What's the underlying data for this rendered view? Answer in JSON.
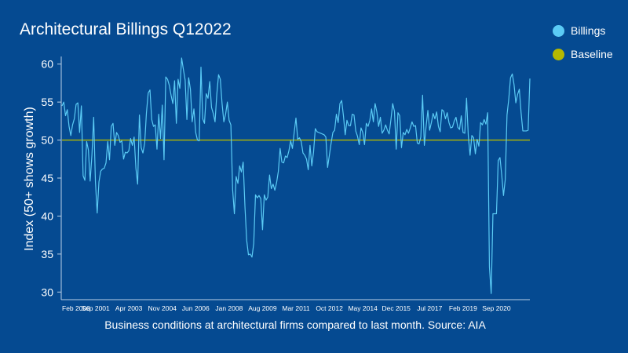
{
  "chart_data": {
    "type": "line",
    "title": "Architectural Billings Q12022",
    "ylabel": "Index (50+ shows growth)",
    "caption": "Business conditions at architectural firms compared to last month. Source: AIA",
    "ylim": [
      29,
      61
    ],
    "yticks": [
      30,
      35,
      40,
      45,
      50,
      55,
      60
    ],
    "xlim": [
      0,
      266
    ],
    "xticks": [
      {
        "i": 0,
        "label": "Feb 2000"
      },
      {
        "i": 19,
        "label": "Sep 2001"
      },
      {
        "i": 38,
        "label": "Apr 2003"
      },
      {
        "i": 57,
        "label": "Nov 2004"
      },
      {
        "i": 76,
        "label": "Jun 2006"
      },
      {
        "i": 95,
        "label": "Jan 2008"
      },
      {
        "i": 114,
        "label": "Aug 2009"
      },
      {
        "i": 133,
        "label": "Mar 2011"
      },
      {
        "i": 152,
        "label": "Oct 2012"
      },
      {
        "i": 171,
        "label": "May 2014"
      },
      {
        "i": 190,
        "label": "Dec 2015"
      },
      {
        "i": 209,
        "label": "Jul 2017"
      },
      {
        "i": 228,
        "label": "Feb 2019"
      },
      {
        "i": 247,
        "label": "Sep 2020"
      }
    ],
    "grid": false,
    "legend_position": "top-right",
    "series": [
      {
        "name": "Billings",
        "color": "#5bcbf5",
        "values": [
          54.5,
          55.0,
          53.2,
          54.0,
          51.8,
          50.6,
          52.0,
          52.8,
          54.7,
          54.9,
          51.0,
          54.5,
          45.3,
          44.7,
          49.8,
          48.7,
          44.6,
          48.0,
          53.0,
          44.5,
          40.4,
          44.5,
          45.9,
          46.2,
          46.3,
          47.0,
          49.8,
          47.4,
          51.8,
          52.2,
          49.3,
          51.0,
          50.6,
          49.7,
          49.9,
          47.5,
          48.4,
          48.3,
          48.6,
          50.2,
          49.3,
          50.4,
          46.3,
          44.2,
          53.3,
          49.0,
          48.3,
          49.6,
          53.6,
          56.2,
          56.6,
          52.7,
          51.8,
          52.0,
          48.8,
          53.4,
          50.2,
          54.6,
          47.4,
          58.3,
          58.0,
          57.2,
          55.9,
          54.8,
          57.8,
          52.2,
          58.0,
          56.8,
          60.8,
          59.3,
          57.9,
          52.7,
          58.2,
          56.7,
          52.4,
          54.1,
          51.0,
          50.0,
          49.9,
          59.6,
          52.8,
          52.2,
          56.1,
          55.5,
          57.7,
          54.3,
          53.5,
          52.4,
          56.0,
          58.6,
          58.0,
          54.8,
          52.4,
          53.4,
          55.0,
          52.6,
          52.0,
          43.5,
          40.3,
          45.2,
          44.3,
          46.6,
          45.8,
          47.1,
          41.3,
          36.8,
          34.9,
          35.0,
          34.6,
          36.4,
          42.8,
          42.4,
          42.7,
          42.3,
          38.2,
          42.8,
          42.1,
          42.5,
          45.4,
          43.6,
          44.2,
          43.4,
          44.4,
          45.9,
          48.9,
          47.1,
          47.0,
          47.9,
          47.7,
          48.6,
          49.9,
          48.9,
          51.0,
          52.9,
          50.1,
          50.3,
          49.8,
          48.3,
          48.0,
          47.5,
          46.1,
          49.3,
          46.6,
          48.4,
          51.5,
          51.1,
          51.0,
          50.9,
          50.8,
          50.7,
          50.4,
          46.4,
          48.0,
          49.6,
          51.0,
          51.3,
          53.4,
          52.3,
          54.8,
          55.2,
          53.2,
          50.7,
          52.6,
          51.9,
          51.9,
          53.4,
          53.3,
          51.2,
          50.5,
          49.4,
          51.6,
          51.0,
          49.4,
          52.2,
          51.8,
          52.6,
          54.1,
          52.4,
          54.8,
          53.7,
          51.8,
          53.0,
          50.9,
          51.3,
          52.0,
          51.3,
          50.8,
          52.7,
          54.8,
          53.8,
          48.8,
          53.6,
          53.2,
          49.0,
          51.0,
          50.7,
          51.4,
          50.9,
          51.6,
          52.4,
          51.8,
          51.9,
          49.6,
          49.5,
          50.4,
          55.9,
          49.3,
          51.8,
          53.9,
          51.3,
          52.3,
          53.5,
          52.8,
          53.7,
          51.8,
          51.1,
          54.0,
          53.8,
          52.8,
          53.6,
          52.3,
          51.6,
          51.7,
          52.5,
          53.0,
          51.7,
          51.4,
          53.2,
          51.0,
          50.9,
          55.5,
          50.5,
          48.0,
          50.6,
          50.3,
          48.2,
          50.1,
          49.2,
          52.3,
          52.0,
          52.7,
          52.1,
          53.6,
          33.3,
          29.8,
          40.3,
          40.3,
          40.3,
          47.3,
          47.7,
          45.4,
          42.7,
          44.8,
          53.3,
          55.4,
          58.2,
          58.7,
          57.3,
          54.9,
          56.0,
          56.7,
          53.6,
          51.2,
          51.2,
          51.2,
          51.3,
          58.1
        ]
      },
      {
        "name": "Baseline",
        "color": "#b5b800",
        "values": [
          50,
          50
        ]
      }
    ]
  }
}
